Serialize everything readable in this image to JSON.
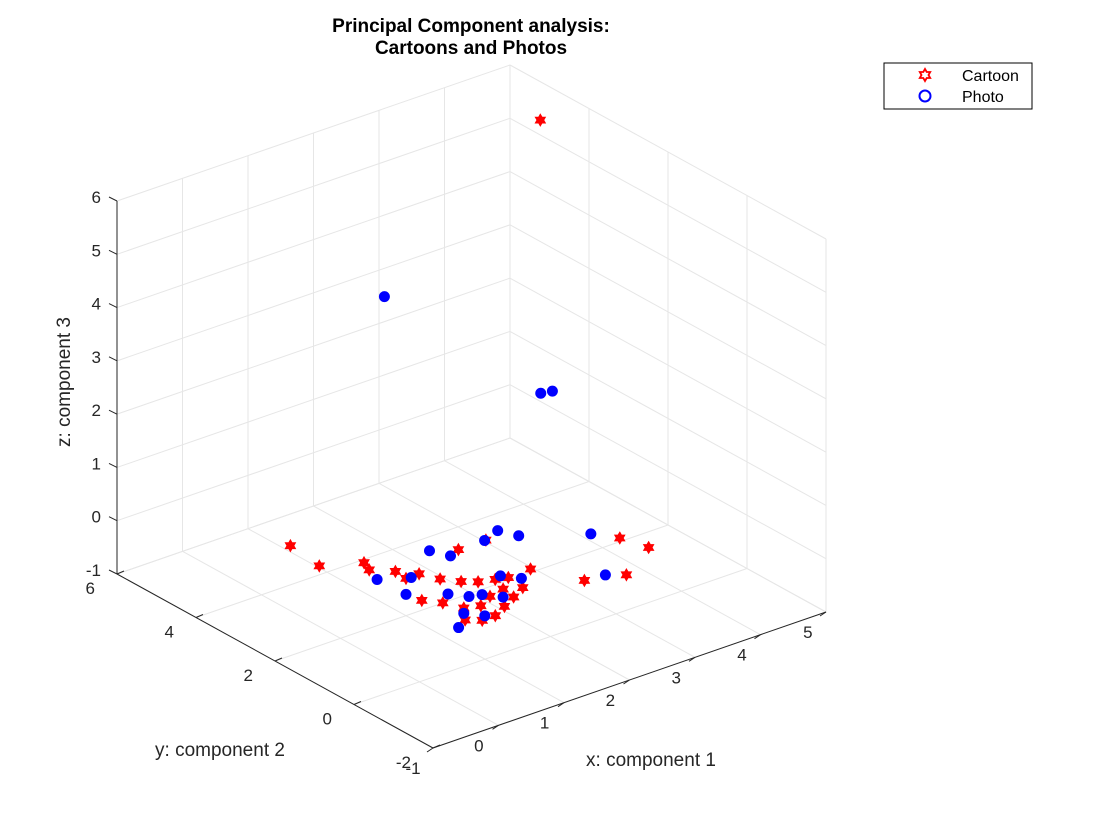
{
  "chart_data": {
    "type": "scatter",
    "projection": "3d",
    "title": [
      "Principal Component analysis:",
      "Cartoons and Photos"
    ],
    "xlabel": "x: component 1",
    "ylabel": "y: component 2",
    "zlabel": "z: component 3",
    "xlim": [
      -1,
      5
    ],
    "ylim": [
      -2,
      6
    ],
    "zlim": [
      -1,
      6
    ],
    "xticks": [
      "-1",
      "0",
      "1",
      "2",
      "3",
      "4",
      "5"
    ],
    "yticks": [
      "-2",
      "0",
      "2",
      "4",
      "6"
    ],
    "zticks": [
      "-1",
      "0",
      "1",
      "2",
      "3",
      "4",
      "5",
      "6"
    ],
    "grid": true,
    "legend_position": "top-right",
    "series": [
      {
        "name": "Cartoon",
        "marker": "hexagram",
        "color": "#ff0000",
        "points": [
          [
            0.2,
            3.6,
            0.0
          ],
          [
            0.4,
            3.2,
            -0.3
          ],
          [
            0.8,
            2.6,
            -0.3
          ],
          [
            0.6,
            2.4,
            0.0
          ],
          [
            1.0,
            2.0,
            -0.3
          ],
          [
            1.2,
            2.0,
            -0.3
          ],
          [
            1.4,
            1.8,
            -0.4
          ],
          [
            1.6,
            1.6,
            -0.45
          ],
          [
            1.8,
            1.5,
            -0.5
          ],
          [
            2.0,
            1.4,
            -0.5
          ],
          [
            2.2,
            1.4,
            -0.55
          ],
          [
            2.0,
            1.2,
            -0.6
          ],
          [
            1.8,
            1.2,
            -0.65
          ],
          [
            1.6,
            1.1,
            -0.7
          ],
          [
            1.4,
            1.2,
            -0.7
          ],
          [
            1.2,
            1.4,
            -0.6
          ],
          [
            1.0,
            1.6,
            -0.55
          ],
          [
            1.3,
            1.0,
            -0.8
          ],
          [
            1.5,
            0.9,
            -0.85
          ],
          [
            1.7,
            0.9,
            -0.85
          ],
          [
            1.9,
            1.0,
            -0.8
          ],
          [
            2.1,
            1.1,
            -0.75
          ],
          [
            2.3,
            1.2,
            -0.7
          ],
          [
            2.6,
            1.5,
            -0.6
          ],
          [
            2.4,
            2.3,
            -0.3
          ],
          [
            1.8,
            2.0,
            -0.1
          ],
          [
            3.6,
            0.9,
            -0.2
          ],
          [
            3.8,
            0.5,
            -0.3
          ],
          [
            3.4,
            0.4,
            -0.6
          ],
          [
            3.0,
            0.8,
            -0.7
          ],
          [
            1.2,
            2.6,
            -0.5
          ],
          [
            4.8,
            4.9,
            5.5
          ]
        ]
      },
      {
        "name": "Photo",
        "marker": "circle",
        "color": "#0000ff",
        "points": [
          [
            1.6,
            2.4,
            -0.2
          ],
          [
            1.8,
            2.2,
            -0.3
          ],
          [
            2.2,
            2.0,
            -0.1
          ],
          [
            2.4,
            2.0,
            0.0
          ],
          [
            2.6,
            1.8,
            -0.1
          ],
          [
            1.2,
            2.2,
            -0.45
          ],
          [
            0.8,
            2.4,
            -0.4
          ],
          [
            1.0,
            2.0,
            -0.6
          ],
          [
            1.4,
            1.6,
            -0.6
          ],
          [
            1.6,
            1.4,
            -0.65
          ],
          [
            1.8,
            1.4,
            -0.7
          ],
          [
            2.0,
            1.2,
            -0.75
          ],
          [
            1.4,
            1.2,
            -0.8
          ],
          [
            1.2,
            1.0,
            -0.9
          ],
          [
            1.6,
            1.0,
            -0.85
          ],
          [
            2.2,
            1.6,
            -0.6
          ],
          [
            2.4,
            1.4,
            -0.65
          ],
          [
            3.2,
            0.6,
            -0.6
          ],
          [
            3.4,
            1.3,
            -0.2
          ],
          [
            3.6,
            2.9,
            1.7
          ],
          [
            4.2,
            3.6,
            1.2
          ],
          [
            2.6,
            5.2,
            3.0
          ]
        ]
      }
    ]
  }
}
